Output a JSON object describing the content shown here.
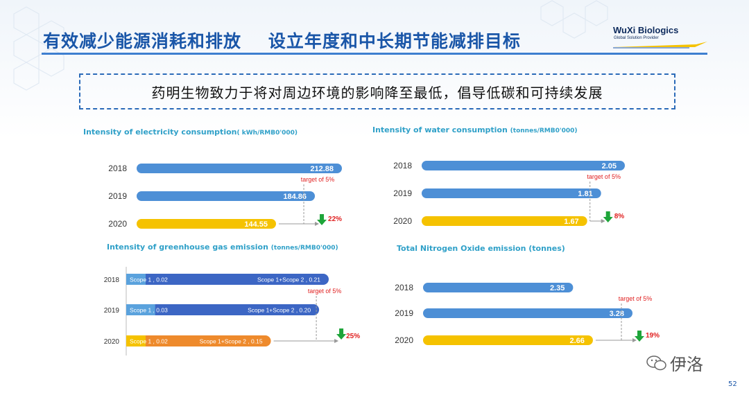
{
  "header": {
    "title": "有效减少能源消耗和排放    设立年度和中长期节能减排目标",
    "logo_name": "WuXi Biologics",
    "logo_tagline": "Global Solution Provider"
  },
  "slogan": "药明生物致力于将对周边环境的影响降至最低，倡导低碳和可持续发展",
  "colors": {
    "bar_blue": "#4d8fd6",
    "bar_dark_blue": "#3c66c4",
    "bar_light_blue": "#5aa2dd",
    "bar_yellow": "#f5c200",
    "bar_orange": "#ee8a2c",
    "arrow_green": "#1ea53a",
    "accent_red": "#e02020",
    "title_blue": "#1a56a8",
    "chart_title": "#2fa0c8"
  },
  "watermark": "伊洛",
  "page_number": "52",
  "chart_data": [
    {
      "type": "bar",
      "orientation": "horizontal",
      "title": "Intensity of electricity consumption",
      "unit": "( kWh/RMB0'000)",
      "categories": [
        "2018",
        "2019",
        "2020"
      ],
      "values": [
        212.88,
        184.86,
        144.55
      ],
      "value_labels": [
        "212.88",
        "184.86",
        "144.55"
      ],
      "bar_colors": [
        "#4d8fd6",
        "#4d8fd6",
        "#f5c200"
      ],
      "target_label": "target of 5%",
      "reduction_label": "22%"
    },
    {
      "type": "bar",
      "orientation": "horizontal",
      "title": "Intensity of water consumption",
      "unit": "(tonnes/RMB0'000)",
      "categories": [
        "2018",
        "2019",
        "2020"
      ],
      "values": [
        2.05,
        1.81,
        1.67
      ],
      "value_labels": [
        "2.05",
        "1.81",
        "1.67"
      ],
      "bar_colors": [
        "#4d8fd6",
        "#4d8fd6",
        "#f5c200"
      ],
      "target_label": "target of 5%",
      "reduction_label": "8%"
    },
    {
      "type": "bar",
      "orientation": "horizontal",
      "stacked": true,
      "title": "Intensity of greenhouse gas emission",
      "unit": "(tonnes/RMB0'000)",
      "categories": [
        "2018",
        "2019",
        "2020"
      ],
      "series": [
        {
          "values": [
            0.02,
            0.03,
            0.02
          ],
          "labels": [
            "Scope 1 , 0.02",
            "Scope 1 , 0.03",
            "Scope 1 , 0.02"
          ],
          "colors": [
            "#5aa2dd",
            "#5aa2dd",
            "#f5c200"
          ]
        },
        {
          "values": [
            0.21,
            0.2,
            0.15
          ],
          "labels": [
            "Scope 1+Scope 2 , 0.21",
            "Scope 1+Scope 2 , 0.20",
            "Scope 1+Scope 2 , 0.15"
          ],
          "colors": [
            "#3c66c4",
            "#3c66c4",
            "#ee8a2c"
          ]
        }
      ],
      "target_label": "target of 5%",
      "reduction_label": "25%"
    },
    {
      "type": "bar",
      "orientation": "horizontal",
      "title": "Total Nitrogen Oxide emission (tonnes)",
      "unit": "",
      "categories": [
        "2018",
        "2019",
        "2020"
      ],
      "values": [
        2.35,
        3.28,
        2.66
      ],
      "value_labels": [
        "2.35",
        "3.28",
        "2.66"
      ],
      "bar_colors": [
        "#4d8fd6",
        "#4d8fd6",
        "#f5c200"
      ],
      "target_label": "target of 5%",
      "reduction_label": "19%"
    }
  ]
}
